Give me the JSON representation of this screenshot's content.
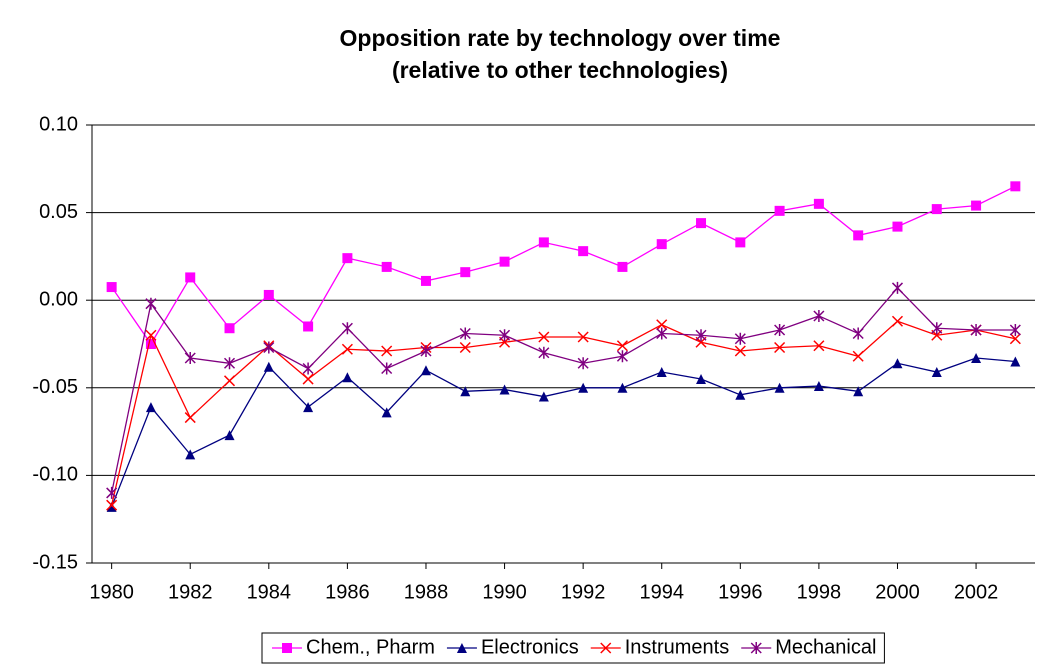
{
  "chart_data": {
    "type": "line",
    "title": "Opposition rate by technology over time",
    "subtitle": "(relative to other technologies)",
    "x": [
      1980,
      1981,
      1982,
      1983,
      1984,
      1985,
      1986,
      1987,
      1988,
      1989,
      1990,
      1991,
      1992,
      1993,
      1994,
      1995,
      1996,
      1997,
      1998,
      1999,
      2000,
      2001,
      2002,
      2003
    ],
    "xlim": [
      1979.5,
      2003.5
    ],
    "xticks": [
      1980,
      1982,
      1984,
      1986,
      1988,
      1990,
      1992,
      1994,
      1996,
      1998,
      2000,
      2002
    ],
    "ylim": [
      -0.15,
      0.1
    ],
    "yticks": [
      {
        "value": -0.15,
        "label": "-0.15"
      },
      {
        "value": -0.1,
        "label": "-0.10"
      },
      {
        "value": -0.05,
        "label": "-0.05"
      },
      {
        "value": 0,
        "label": "0.00"
      },
      {
        "value": 0.05,
        "label": "0.05"
      },
      {
        "value": 0.1,
        "label": "0.10"
      }
    ],
    "grid": true,
    "legend": "bottom",
    "series": [
      {
        "name": "Chem., Pharm",
        "color": "#ff00ff",
        "marker": "square",
        "values": [
          0.0075,
          -0.025,
          0.013,
          -0.016,
          0.003,
          -0.015,
          0.024,
          0.019,
          0.011,
          0.016,
          0.022,
          0.033,
          0.028,
          0.019,
          0.032,
          0.044,
          0.033,
          0.051,
          0.055,
          0.037,
          0.042,
          0.052,
          0.054,
          0.065
        ]
      },
      {
        "name": "Electronics",
        "color": "#000080",
        "marker": "triangle",
        "values": [
          -0.118,
          -0.061,
          -0.088,
          -0.077,
          -0.038,
          -0.061,
          -0.044,
          -0.064,
          -0.04,
          -0.052,
          -0.051,
          -0.055,
          -0.05,
          -0.05,
          -0.041,
          -0.045,
          -0.054,
          -0.05,
          -0.049,
          -0.052,
          -0.036,
          -0.041,
          -0.033,
          -0.035
        ]
      },
      {
        "name": "Instruments",
        "color": "#ff0000",
        "marker": "x",
        "values": [
          -0.117,
          -0.02,
          -0.067,
          -0.046,
          -0.026,
          -0.045,
          -0.028,
          -0.029,
          -0.027,
          -0.027,
          -0.024,
          -0.021,
          -0.021,
          -0.026,
          -0.014,
          -0.024,
          -0.029,
          -0.027,
          -0.026,
          -0.032,
          -0.012,
          -0.02,
          -0.017,
          -0.022
        ]
      },
      {
        "name": "Mechanical",
        "color": "#800080",
        "marker": "star",
        "values": [
          -0.11,
          -0.002,
          -0.033,
          -0.036,
          -0.027,
          -0.039,
          -0.016,
          -0.039,
          -0.029,
          -0.019,
          -0.02,
          -0.03,
          -0.036,
          -0.032,
          -0.019,
          -0.02,
          -0.022,
          -0.017,
          -0.009,
          -0.019,
          0.007,
          -0.016,
          -0.017,
          -0.017
        ]
      }
    ]
  }
}
